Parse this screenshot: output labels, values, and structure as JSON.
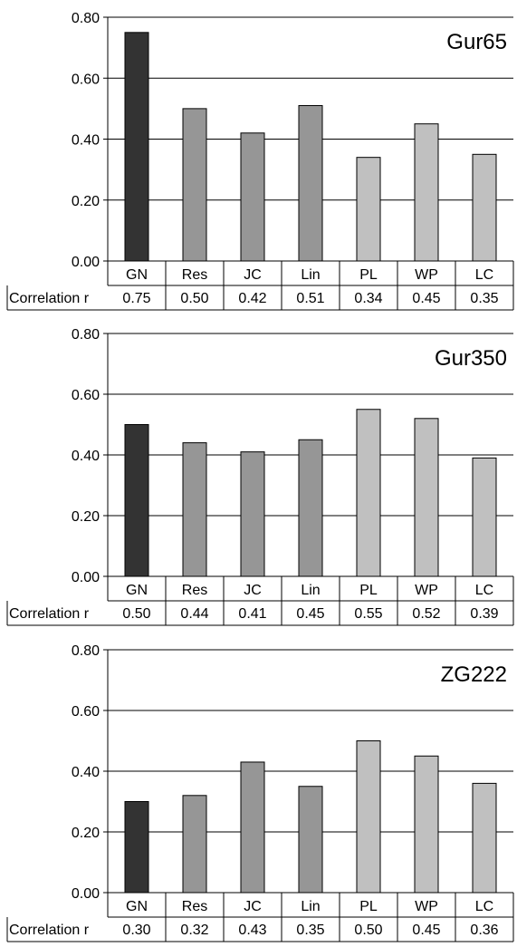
{
  "row_label": "Correlation r",
  "colors": {
    "GN": "#333333",
    "Res": "#969696",
    "JC": "#969696",
    "Lin": "#969696",
    "PL": "#c0c0c0",
    "WP": "#c0c0c0",
    "LC": "#c0c0c0"
  },
  "chart_data": [
    {
      "type": "bar",
      "title": "Gur65",
      "categories": [
        "GN",
        "Res",
        "JC",
        "Lin",
        "PL",
        "WP",
        "LC"
      ],
      "values": [
        0.75,
        0.5,
        0.42,
        0.51,
        0.34,
        0.45,
        0.35
      ],
      "table_values": [
        "0.75",
        "0.50",
        "0.42",
        "0.51",
        "0.34",
        "0.45",
        "0.35"
      ],
      "ylim": [
        0,
        0.8
      ],
      "yticks": [
        "0.00",
        "0.20",
        "0.40",
        "0.60",
        "0.80"
      ],
      "grid": true
    },
    {
      "type": "bar",
      "title": "Gur350",
      "categories": [
        "GN",
        "Res",
        "JC",
        "Lin",
        "PL",
        "WP",
        "LC"
      ],
      "values": [
        0.5,
        0.44,
        0.41,
        0.45,
        0.55,
        0.52,
        0.39
      ],
      "table_values": [
        "0.50",
        "0.44",
        "0.41",
        "0.45",
        "0.55",
        "0.52",
        "0.39"
      ],
      "ylim": [
        0,
        0.8
      ],
      "yticks": [
        "0.00",
        "0.20",
        "0.40",
        "0.60",
        "0.80"
      ],
      "grid": true
    },
    {
      "type": "bar",
      "title": "ZG222",
      "categories": [
        "GN",
        "Res",
        "JC",
        "Lin",
        "PL",
        "WP",
        "LC"
      ],
      "values": [
        0.3,
        0.32,
        0.43,
        0.35,
        0.5,
        0.45,
        0.36
      ],
      "table_values": [
        "0.30",
        "0.32",
        "0.43",
        "0.35",
        "0.50",
        "0.45",
        "0.36"
      ],
      "ylim": [
        0,
        0.8
      ],
      "yticks": [
        "0.00",
        "0.20",
        "0.40",
        "0.60",
        "0.80"
      ],
      "grid": true
    }
  ]
}
